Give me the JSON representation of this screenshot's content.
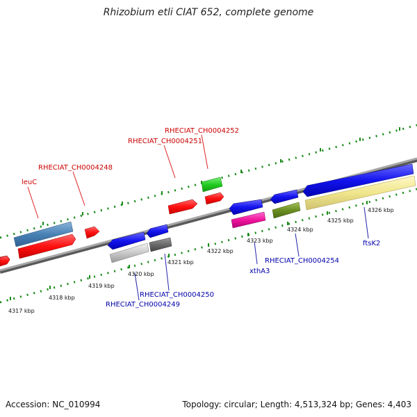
{
  "header": {
    "title": "Rhizobium etli CIAT 652, complete genome"
  },
  "footer": {
    "accession": "Accession: NC_010994",
    "summary": "Topology: circular; Length: 4,513,324 bp; Genes: 4,403"
  },
  "colors": {
    "forward_label": "#cc0000",
    "reverse_label": "#0000aa",
    "backbone": "#8a8a8a",
    "ticks": "#1a8a1a"
  },
  "kbp_labels": [
    "4317 kbp",
    "4318 kbp",
    "4319 kbp",
    "4320 kbp",
    "4321 kbp",
    "4322 kbp",
    "4323 kbp",
    "4324 kbp",
    "4325 kbp",
    "4326 kbp"
  ],
  "gene_labels": {
    "forward": [
      "leuC",
      "RHECIAT_CH0004248",
      "RHECIAT_CH0004251",
      "RHECIAT_CH0004252"
    ],
    "reverse": [
      "RHECIAT_CH0004249",
      "RHECIAT_CH0004250",
      "xthA3",
      "RHECIAT_CH0004254",
      "ftsK2"
    ]
  }
}
